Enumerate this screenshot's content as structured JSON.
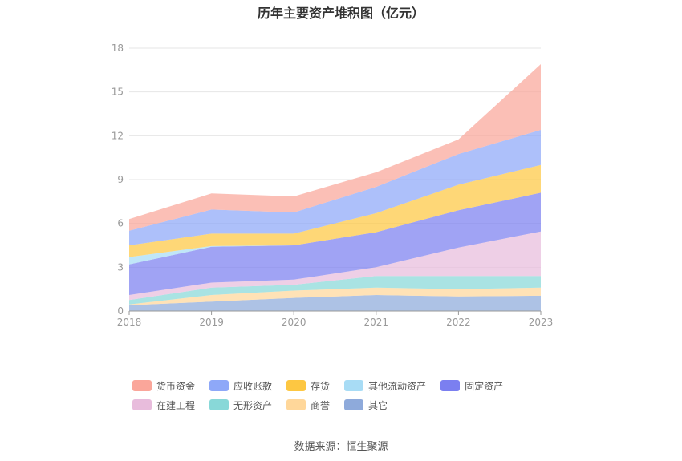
{
  "chart_data": {
    "type": "area",
    "stacked": true,
    "title": "历年主要资产堆积图（亿元）",
    "categories": [
      "2018",
      "2019",
      "2020",
      "2021",
      "2022",
      "2023"
    ],
    "ylim": [
      0,
      18
    ],
    "yticks": [
      0,
      3,
      6,
      9,
      12,
      15,
      18
    ],
    "grid": true,
    "legend_position": "bottom",
    "series": [
      {
        "name": "其它",
        "color": "#8eaadb",
        "values": [
          0.4,
          0.65,
          0.9,
          1.1,
          1.0,
          1.05
        ]
      },
      {
        "name": "商誉",
        "color": "#ffd79a",
        "values": [
          0.05,
          0.45,
          0.5,
          0.5,
          0.5,
          0.55
        ]
      },
      {
        "name": "无形资产",
        "color": "#88d8d8",
        "values": [
          0.3,
          0.5,
          0.4,
          0.8,
          0.9,
          0.8
        ]
      },
      {
        "name": "在建工程",
        "color": "#e8bcdc",
        "values": [
          0.35,
          0.35,
          0.35,
          0.6,
          1.95,
          3.05
        ]
      },
      {
        "name": "固定资产",
        "color": "#7b7ff0",
        "values": [
          2.1,
          2.45,
          2.35,
          2.4,
          2.55,
          2.65
        ]
      },
      {
        "name": "其他流动资产",
        "color": "#a8dcf5",
        "values": [
          0.5,
          0.05,
          0.0,
          0.0,
          0.0,
          0.0
        ]
      },
      {
        "name": "存货",
        "color": "#fdc742",
        "values": [
          0.8,
          0.85,
          0.8,
          1.3,
          1.75,
          1.9
        ]
      },
      {
        "name": "应收账款",
        "color": "#8ea8f8",
        "values": [
          1.0,
          1.65,
          1.45,
          1.8,
          2.1,
          2.4
        ]
      },
      {
        "name": "货币资金",
        "color": "#faa69a",
        "values": [
          0.8,
          1.1,
          1.1,
          1.0,
          1.0,
          4.5
        ]
      }
    ]
  },
  "legend_order": [
    "货币资金",
    "应收账款",
    "存货",
    "其他流动资产",
    "固定资产",
    "在建工程",
    "无形资产",
    "商誉",
    "其它"
  ],
  "source": "数据来源：恒生聚源"
}
